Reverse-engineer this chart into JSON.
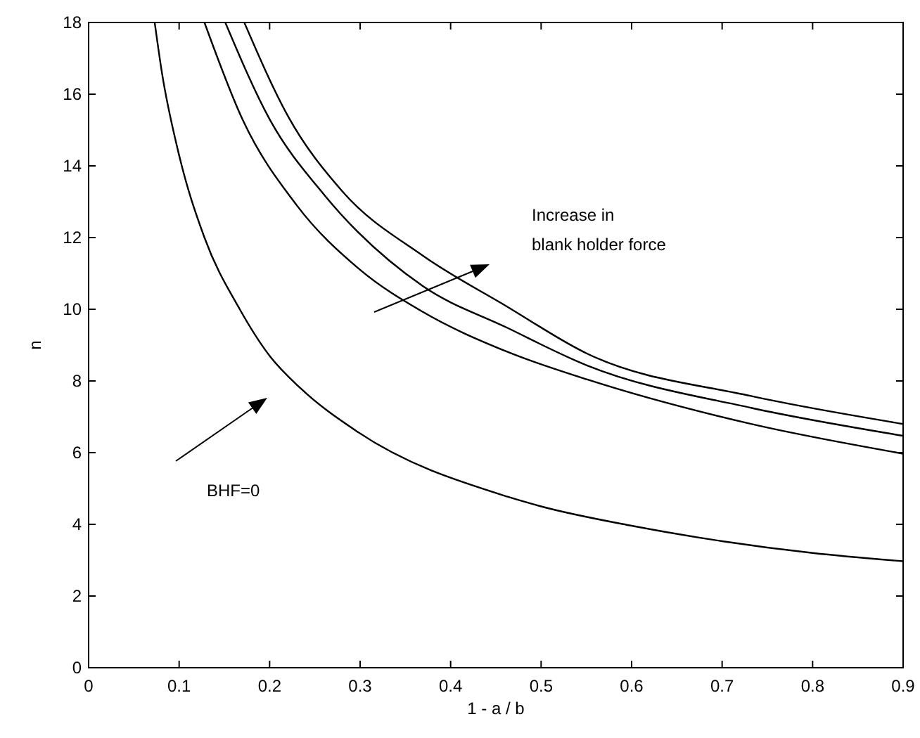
{
  "chart_data": {
    "type": "line",
    "xlabel": "1 - a / b",
    "ylabel": "n",
    "xlim": [
      0,
      0.9
    ],
    "ylim": [
      0,
      18
    ],
    "xticks": [
      0,
      0.1,
      0.2,
      0.3,
      0.4,
      0.5,
      0.6,
      0.7,
      0.8,
      0.9
    ],
    "yticks": [
      0,
      2,
      4,
      6,
      8,
      10,
      12,
      14,
      16,
      18
    ],
    "series": [
      {
        "color": "#000000",
        "x": [
          0.073,
          0.081,
          0.099,
          0.128,
          0.167,
          0.2,
          0.234,
          0.296,
          0.463,
          0.5,
          0.6,
          0.7,
          0.8,
          0.9
        ],
        "values": [
          18,
          16.6,
          14.4,
          12,
          10,
          8.7,
          7.8,
          6.6,
          4.77,
          4.5,
          3.96,
          3.53,
          3.2,
          2.97
        ]
      },
      {
        "color": "#000000",
        "x": [
          0.128,
          0.17,
          0.23,
          0.3,
          0.369,
          0.462,
          0.551,
          0.732,
          0.9
        ],
        "values": [
          18,
          15.3,
          12.9,
          11.1,
          9.93,
          8.82,
          8.04,
          6.8,
          5.97
        ]
      },
      {
        "color": "#000000",
        "x": [
          0.151,
          0.2,
          0.26,
          0.369,
          0.462,
          0.551,
          0.732,
          0.9
        ],
        "values": [
          18,
          15.3,
          13.2,
          10.65,
          9.49,
          8.43,
          7.25,
          6.47
        ]
      },
      {
        "color": "#000000",
        "x": [
          0.172,
          0.22,
          0.28,
          0.369,
          0.462,
          0.551,
          0.732,
          0.9
        ],
        "values": [
          18,
          15.4,
          13.3,
          11.5,
          10.08,
          8.76,
          7.58,
          6.8
        ]
      }
    ],
    "annotations": [
      "Increase in\nblank holder force",
      "BHF=0"
    ]
  }
}
